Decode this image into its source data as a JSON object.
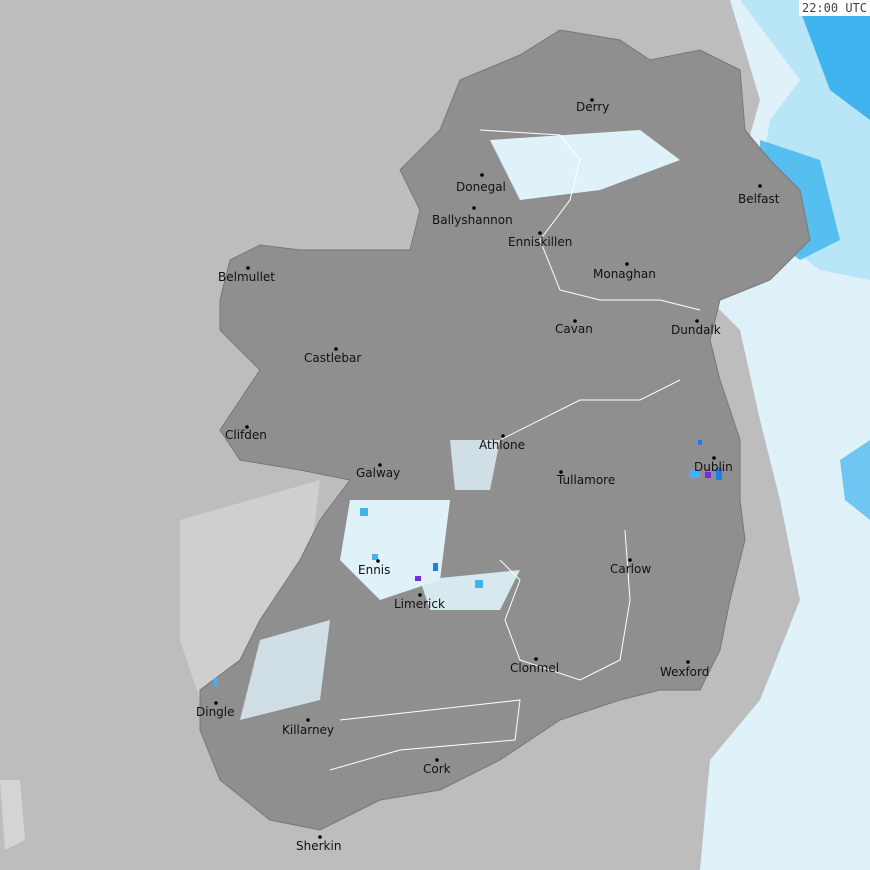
{
  "timestamp": "22:00 UTC",
  "colors": {
    "sea": "#bdbdbd",
    "land": "#8f8f8f",
    "land_light": "#a5a5a5",
    "light_precip": "#dff2fa",
    "moderate_precip": "#b8e6f7",
    "heavier_precip": "#3fb4ee",
    "heavy_precip": "#1a7fe6",
    "intense_precip": "#7a2be0",
    "border": "#ffffff"
  },
  "cities": [
    {
      "name": "Derry"
    },
    {
      "name": "Donegal"
    },
    {
      "name": "Ballyshannon"
    },
    {
      "name": "Enniskillen"
    },
    {
      "name": "Belfast"
    },
    {
      "name": "Belmullet"
    },
    {
      "name": "Monaghan"
    },
    {
      "name": "Cavan"
    },
    {
      "name": "Dundalk"
    },
    {
      "name": "Castlebar"
    },
    {
      "name": "Clifden"
    },
    {
      "name": "Athlone"
    },
    {
      "name": "Galway"
    },
    {
      "name": "Tullamore"
    },
    {
      "name": "Dublin"
    },
    {
      "name": "Ennis"
    },
    {
      "name": "Carlow"
    },
    {
      "name": "Limerick"
    },
    {
      "name": "Clonmel"
    },
    {
      "name": "Wexford"
    },
    {
      "name": "Dingle"
    },
    {
      "name": "Killarney"
    },
    {
      "name": "Cork"
    },
    {
      "name": "Sherkin"
    }
  ]
}
